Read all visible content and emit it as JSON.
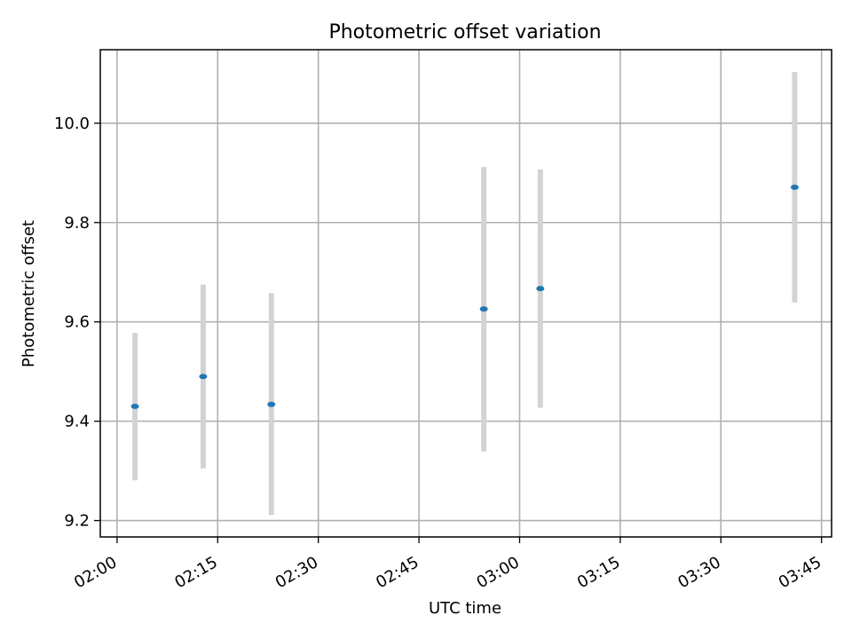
{
  "chart_data": {
    "type": "scatter",
    "title": "Photometric offset variation",
    "xlabel": "UTC time",
    "ylabel": "Photometric offset",
    "x_ticks": [
      "02:00",
      "02:15",
      "02:30",
      "02:45",
      "03:00",
      "03:15",
      "03:30",
      "03:45"
    ],
    "y_ticks": [
      "9.2",
      "9.4",
      "9.6",
      "9.8",
      "10.0"
    ],
    "x_axis": {
      "type": "time",
      "range": [
        "01:57:30",
        "03:46:30"
      ]
    },
    "ylim": [
      9.167,
      10.148
    ],
    "grid": true,
    "series": [
      {
        "points": [
          {
            "x": "02:02:40",
            "y": 9.43,
            "y_low": 9.281,
            "y_high": 9.578
          },
          {
            "x": "02:12:50",
            "y": 9.49,
            "y_low": 9.305,
            "y_high": 9.675
          },
          {
            "x": "02:23:00",
            "y": 9.434,
            "y_low": 9.211,
            "y_high": 9.658
          },
          {
            "x": "02:54:40",
            "y": 9.626,
            "y_low": 9.339,
            "y_high": 9.912
          },
          {
            "x": "03:03:05",
            "y": 9.667,
            "y_low": 9.427,
            "y_high": 9.907
          },
          {
            "x": "03:41:00",
            "y": 9.871,
            "y_low": 9.639,
            "y_high": 10.103
          }
        ]
      }
    ],
    "colors": {
      "marker": "#1f77b4",
      "errorbar": "#d3d3d3",
      "grid": "#b0b0b0",
      "axes": "#000000"
    }
  }
}
